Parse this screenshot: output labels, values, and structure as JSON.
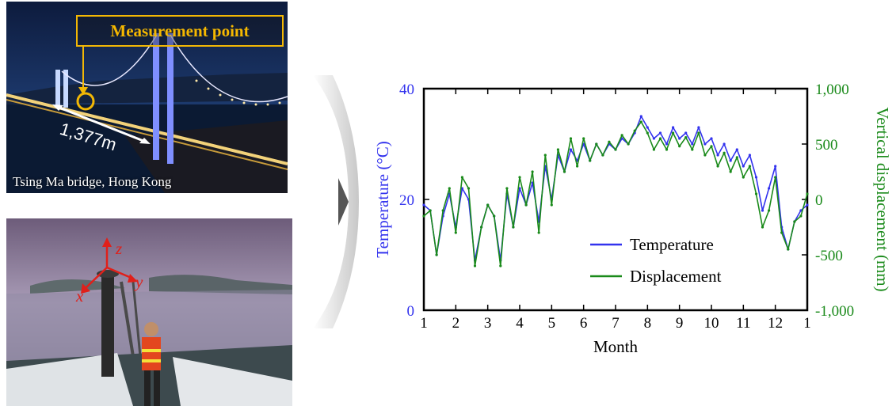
{
  "photos": {
    "top": {
      "callout": "Measurement point",
      "length": "1,377m",
      "caption": "Tsing Ma bridge, Hong Kong"
    },
    "bottom": {
      "axes": [
        "z",
        "y",
        "x"
      ]
    }
  },
  "colors": {
    "temperature": "#3333ee",
    "displacement": "#1a8a1a",
    "callout": "#f2b705",
    "axes_arrows": "#e0201a"
  },
  "chart_data": {
    "type": "line",
    "xlabel": "Month",
    "ylabel_left": "Temperature (°C)",
    "ylabel_right": "Vertical displacement (mm)",
    "x_ticks": [
      "1",
      "2",
      "3",
      "4",
      "5",
      "6",
      "7",
      "8",
      "9",
      "10",
      "11",
      "12",
      "1"
    ],
    "y_left_ticks": [
      "0",
      "20",
      "40"
    ],
    "y_right_ticks": [
      "-1,000",
      "-500",
      "0",
      "500",
      "1,000"
    ],
    "ylim_left": [
      0,
      40
    ],
    "ylim_right": [
      -1000,
      1000
    ],
    "xlim": [
      1,
      13
    ],
    "legend_position": "lower-center",
    "series": [
      {
        "name": "Temperature",
        "axis": "left",
        "x": [
          1.0,
          1.2,
          1.4,
          1.6,
          1.8,
          2.0,
          2.2,
          2.4,
          2.6,
          2.8,
          3.0,
          3.2,
          3.4,
          3.6,
          3.8,
          4.0,
          4.2,
          4.4,
          4.6,
          4.8,
          5.0,
          5.2,
          5.4,
          5.6,
          5.8,
          6.0,
          6.2,
          6.4,
          6.6,
          6.8,
          7.0,
          7.2,
          7.4,
          7.6,
          7.8,
          8.0,
          8.2,
          8.4,
          8.6,
          8.8,
          9.0,
          9.2,
          9.4,
          9.6,
          9.8,
          10.0,
          10.2,
          10.4,
          10.6,
          10.8,
          11.0,
          11.2,
          11.4,
          11.6,
          11.8,
          12.0,
          12.2,
          12.4,
          12.6,
          12.8,
          13.0
        ],
        "values": [
          19,
          18,
          10,
          17,
          21,
          15,
          22,
          20,
          9,
          15,
          19,
          17,
          9,
          21,
          15,
          22,
          19,
          23,
          16,
          26,
          20,
          28,
          25,
          29,
          27,
          30,
          27,
          30,
          28,
          30,
          29,
          31,
          30,
          32,
          35,
          33,
          31,
          32,
          30,
          33,
          31,
          32,
          30,
          33,
          30,
          31,
          28,
          30,
          27,
          29,
          26,
          28,
          24,
          18,
          22,
          26,
          15,
          11,
          16,
          18,
          19
        ]
      },
      {
        "name": "Displacement",
        "axis": "right",
        "x": [
          1.0,
          1.2,
          1.4,
          1.6,
          1.8,
          2.0,
          2.2,
          2.4,
          2.6,
          2.8,
          3.0,
          3.2,
          3.4,
          3.6,
          3.8,
          4.0,
          4.2,
          4.4,
          4.6,
          4.8,
          5.0,
          5.2,
          5.4,
          5.6,
          5.8,
          6.0,
          6.2,
          6.4,
          6.6,
          6.8,
          7.0,
          7.2,
          7.4,
          7.6,
          7.8,
          8.0,
          8.2,
          8.4,
          8.6,
          8.8,
          9.0,
          9.2,
          9.4,
          9.6,
          9.8,
          10.0,
          10.2,
          10.4,
          10.6,
          10.8,
          11.0,
          11.2,
          11.4,
          11.6,
          11.8,
          12.0,
          12.2,
          12.4,
          12.6,
          12.8,
          13.0
        ],
        "values": [
          -150,
          -100,
          -500,
          -100,
          100,
          -300,
          200,
          100,
          -600,
          -250,
          -50,
          -150,
          -600,
          100,
          -250,
          200,
          -50,
          250,
          -300,
          400,
          -50,
          450,
          250,
          550,
          300,
          550,
          350,
          500,
          400,
          520,
          450,
          580,
          500,
          620,
          700,
          600,
          450,
          550,
          450,
          600,
          480,
          560,
          450,
          600,
          400,
          480,
          300,
          420,
          250,
          380,
          200,
          300,
          50,
          -250,
          -100,
          200,
          -300,
          -450,
          -200,
          -150,
          50
        ]
      }
    ]
  }
}
